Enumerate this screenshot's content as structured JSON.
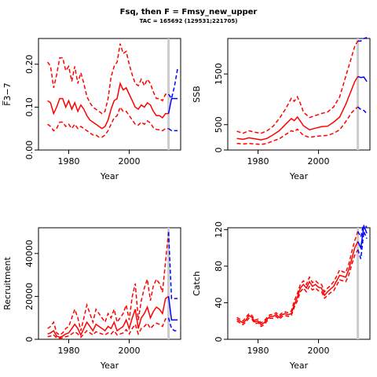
{
  "title": "Fsq, then F = Fmsy_new_upper",
  "subtitle": "TAC = 165692 (129531;221705)",
  "colors": {
    "historical": "#ff0000",
    "projection": "#0000ff",
    "marker": "#cccccc"
  },
  "chart_data": [
    {
      "id": "fbar",
      "type": "line",
      "ylabel": "F̅3−7",
      "xlabel": "Year",
      "xlim": [
        1970,
        2017
      ],
      "ylim": [
        0,
        0.26
      ],
      "xticks": [
        "1980",
        "2000"
      ],
      "yticks": [
        "0.00",
        "0.10",
        "0.20"
      ],
      "marker_year": 2013,
      "series": [
        {
          "role": "historical",
          "x": [
            1973,
            1974,
            1975,
            1976,
            1977,
            1978,
            1979,
            1980,
            1981,
            1982,
            1983,
            1984,
            1985,
            1986,
            1987,
            1988,
            1989,
            1990,
            1991,
            1992,
            1993,
            1994,
            1995,
            1996,
            1997,
            1998,
            1999,
            2000,
            2001,
            2002,
            2003,
            2004,
            2005,
            2006,
            2007,
            2008,
            2009,
            2010,
            2011,
            2012,
            2013
          ],
          "mid": [
            0.115,
            0.11,
            0.085,
            0.1,
            0.12,
            0.12,
            0.1,
            0.115,
            0.095,
            0.11,
            0.09,
            0.105,
            0.095,
            0.08,
            0.07,
            0.065,
            0.06,
            0.055,
            0.05,
            0.055,
            0.07,
            0.095,
            0.115,
            0.12,
            0.155,
            0.14,
            0.145,
            0.13,
            0.115,
            0.1,
            0.095,
            0.105,
            0.1,
            0.11,
            0.105,
            0.09,
            0.08,
            0.08,
            0.075,
            0.085,
            0.085
          ],
          "upper": [
            0.205,
            0.195,
            0.145,
            0.175,
            0.215,
            0.215,
            0.185,
            0.195,
            0.16,
            0.195,
            0.155,
            0.18,
            0.155,
            0.125,
            0.11,
            0.1,
            0.095,
            0.09,
            0.085,
            0.09,
            0.12,
            0.17,
            0.195,
            0.205,
            0.248,
            0.225,
            0.23,
            0.2,
            0.175,
            0.155,
            0.15,
            0.165,
            0.15,
            0.165,
            0.155,
            0.135,
            0.12,
            0.12,
            0.115,
            0.13,
            0.13
          ],
          "lower": [
            0.06,
            0.055,
            0.045,
            0.05,
            0.065,
            0.065,
            0.055,
            0.06,
            0.05,
            0.06,
            0.05,
            0.055,
            0.05,
            0.045,
            0.04,
            0.035,
            0.035,
            0.03,
            0.03,
            0.035,
            0.045,
            0.06,
            0.075,
            0.08,
            0.1,
            0.09,
            0.09,
            0.08,
            0.07,
            0.06,
            0.058,
            0.065,
            0.06,
            0.068,
            0.063,
            0.052,
            0.048,
            0.047,
            0.045,
            0.05,
            0.05
          ]
        },
        {
          "role": "projection",
          "x": [
            2013,
            2014,
            2015,
            2016
          ],
          "mid": [
            0.085,
            0.12,
            0.12,
            0.12
          ],
          "upper": [
            0.13,
            0.12,
            0.15,
            0.19
          ],
          "lower": [
            0.05,
            0.045,
            0.045,
            0.045
          ]
        }
      ]
    },
    {
      "id": "ssb",
      "type": "line",
      "ylabel": "SSB",
      "xlabel": "Year",
      "xlim": [
        1970,
        2017
      ],
      "ylim": [
        0,
        2200
      ],
      "xticks": [
        "1980",
        "2000"
      ],
      "yticks": [
        "0",
        "500",
        "1500"
      ],
      "marker_year": 2013,
      "series": [
        {
          "role": "historical",
          "x": [
            1973,
            1975,
            1977,
            1979,
            1981,
            1983,
            1985,
            1987,
            1989,
            1991,
            1992,
            1993,
            1994,
            1995,
            1997,
            1999,
            2001,
            2003,
            2005,
            2007,
            2009,
            2011,
            2012,
            2013
          ],
          "mid": [
            230,
            210,
            240,
            220,
            200,
            230,
            300,
            380,
            500,
            620,
            580,
            650,
            570,
            480,
            400,
            430,
            460,
            470,
            550,
            650,
            900,
            1200,
            1350,
            1450
          ],
          "upper": [
            370,
            330,
            380,
            350,
            330,
            380,
            470,
            620,
            800,
            1020,
            960,
            1050,
            920,
            750,
            640,
            680,
            720,
            750,
            850,
            1050,
            1450,
            1850,
            2050,
            2150
          ],
          "lower": [
            130,
            120,
            130,
            120,
            110,
            130,
            180,
            220,
            300,
            380,
            360,
            410,
            350,
            290,
            250,
            270,
            280,
            290,
            330,
            400,
            560,
            740,
            800,
            850
          ]
        },
        {
          "role": "projection",
          "x": [
            2013,
            2014,
            2015,
            2016
          ],
          "mid": [
            1450,
            1430,
            1440,
            1350
          ],
          "upper": [
            2150,
            2150,
            2200,
            2220
          ],
          "lower": [
            850,
            800,
            780,
            720
          ]
        }
      ]
    },
    {
      "id": "recruitment",
      "type": "line",
      "ylabel": "Recruitment",
      "xlabel": "Year",
      "xlim": [
        1970,
        2017
      ],
      "ylim": [
        0,
        52000
      ],
      "xticks": [
        "1980",
        "2000"
      ],
      "yticks": [
        "0",
        "20000",
        "40000"
      ],
      "marker_year": 2013,
      "series": [
        {
          "role": "historical",
          "x": [
            1973,
            1974,
            1975,
            1976,
            1977,
            1978,
            1979,
            1980,
            1981,
            1982,
            1983,
            1984,
            1985,
            1986,
            1987,
            1988,
            1989,
            1990,
            1991,
            1992,
            1993,
            1994,
            1995,
            1996,
            1997,
            1998,
            1999,
            2000,
            2001,
            2002,
            2003,
            2004,
            2005,
            2006,
            2007,
            2008,
            2009,
            2010,
            2011,
            2012,
            2013
          ],
          "mid": [
            2500,
            3000,
            4000,
            1500,
            1000,
            1500,
            2500,
            3000,
            5000,
            7000,
            5000,
            2000,
            5000,
            8000,
            6000,
            4000,
            7000,
            6000,
            5000,
            4000,
            6000,
            5000,
            8000,
            4000,
            5000,
            6000,
            9000,
            5000,
            10000,
            14000,
            5000,
            10000,
            12000,
            15000,
            10000,
            13000,
            15000,
            14000,
            12000,
            19000,
            20000
          ],
          "upper": [
            5000,
            6000,
            8000,
            3000,
            2000,
            3000,
            5000,
            6000,
            10000,
            14000,
            10000,
            4000,
            10000,
            16000,
            12000,
            8000,
            14000,
            12000,
            10000,
            8000,
            12000,
            10000,
            14000,
            8000,
            10000,
            12000,
            16000,
            9000,
            20000,
            26000,
            9000,
            18000,
            24000,
            28000,
            18000,
            25000,
            28000,
            26000,
            22000,
            36000,
            50000
          ],
          "lower": [
            1200,
            1500,
            2000,
            700,
            500,
            700,
            1200,
            1500,
            2500,
            3500,
            2500,
            1000,
            2500,
            4000,
            3000,
            2000,
            3500,
            3000,
            2500,
            2000,
            3000,
            2500,
            4000,
            2000,
            2500,
            3000,
            4500,
            2500,
            5000,
            7000,
            2500,
            5000,
            6000,
            7500,
            5000,
            6500,
            7500,
            7000,
            6000,
            9500,
            10000
          ]
        },
        {
          "role": "projection",
          "x": [
            2013,
            2014,
            2015,
            2016
          ],
          "mid": [
            20000,
            9000,
            9000,
            9000
          ],
          "upper": [
            50000,
            19000,
            19000,
            19000
          ],
          "lower": [
            10000,
            5000,
            4000,
            4000
          ]
        }
      ]
    },
    {
      "id": "catch",
      "type": "line",
      "ylabel": "Catch",
      "xlabel": "Year",
      "xlim": [
        1970,
        2017
      ],
      "ylim": [
        0,
        122
      ],
      "xticks": [
        "1980",
        "2000"
      ],
      "yticks": [
        "0",
        "40",
        "80",
        "120"
      ],
      "marker_year": 2013,
      "series": [
        {
          "role": "historical",
          "x": [
            1973,
            1974,
            1975,
            1976,
            1977,
            1978,
            1979,
            1980,
            1981,
            1982,
            1983,
            1984,
            1985,
            1986,
            1987,
            1988,
            1989,
            1990,
            1991,
            1992,
            1993,
            1994,
            1995,
            1996,
            1997,
            1998,
            1999,
            2000,
            2001,
            2002,
            2003,
            2004,
            2005,
            2006,
            2007,
            2008,
            2009,
            2010,
            2011,
            2012,
            2013
          ],
          "mid": [
            22,
            20,
            18,
            21,
            26,
            24,
            19,
            20,
            16,
            18,
            22,
            25,
            25,
            27,
            24,
            27,
            28,
            27,
            28,
            38,
            46,
            56,
            60,
            56,
            63,
            58,
            60,
            57,
            56,
            48,
            52,
            55,
            58,
            64,
            70,
            69,
            68,
            76,
            88,
            100,
            107
          ],
          "upper": [
            24,
            22,
            20,
            24,
            28,
            26,
            21,
            22,
            18,
            20,
            24,
            27,
            27,
            29,
            26,
            29,
            30,
            29,
            31,
            42,
            50,
            60,
            64,
            60,
            68,
            62,
            64,
            61,
            60,
            52,
            56,
            59,
            63,
            69,
            76,
            74,
            73,
            82,
            96,
            108,
            118
          ],
          "lower": [
            20,
            18,
            16,
            19,
            23,
            22,
            17,
            18,
            14,
            16,
            20,
            23,
            23,
            25,
            22,
            25,
            26,
            25,
            26,
            35,
            42,
            52,
            56,
            52,
            58,
            54,
            56,
            53,
            52,
            45,
            48,
            51,
            53,
            59,
            65,
            64,
            63,
            70,
            82,
            92,
            98
          ]
        },
        {
          "role": "projection",
          "x": [
            2013,
            2014,
            2015,
            2016
          ],
          "mid": [
            107,
            100,
            124,
            116
          ],
          "upper": [
            118,
            112,
            128,
            122
          ],
          "lower": [
            98,
            88,
            118,
            110
          ]
        }
      ]
    }
  ]
}
